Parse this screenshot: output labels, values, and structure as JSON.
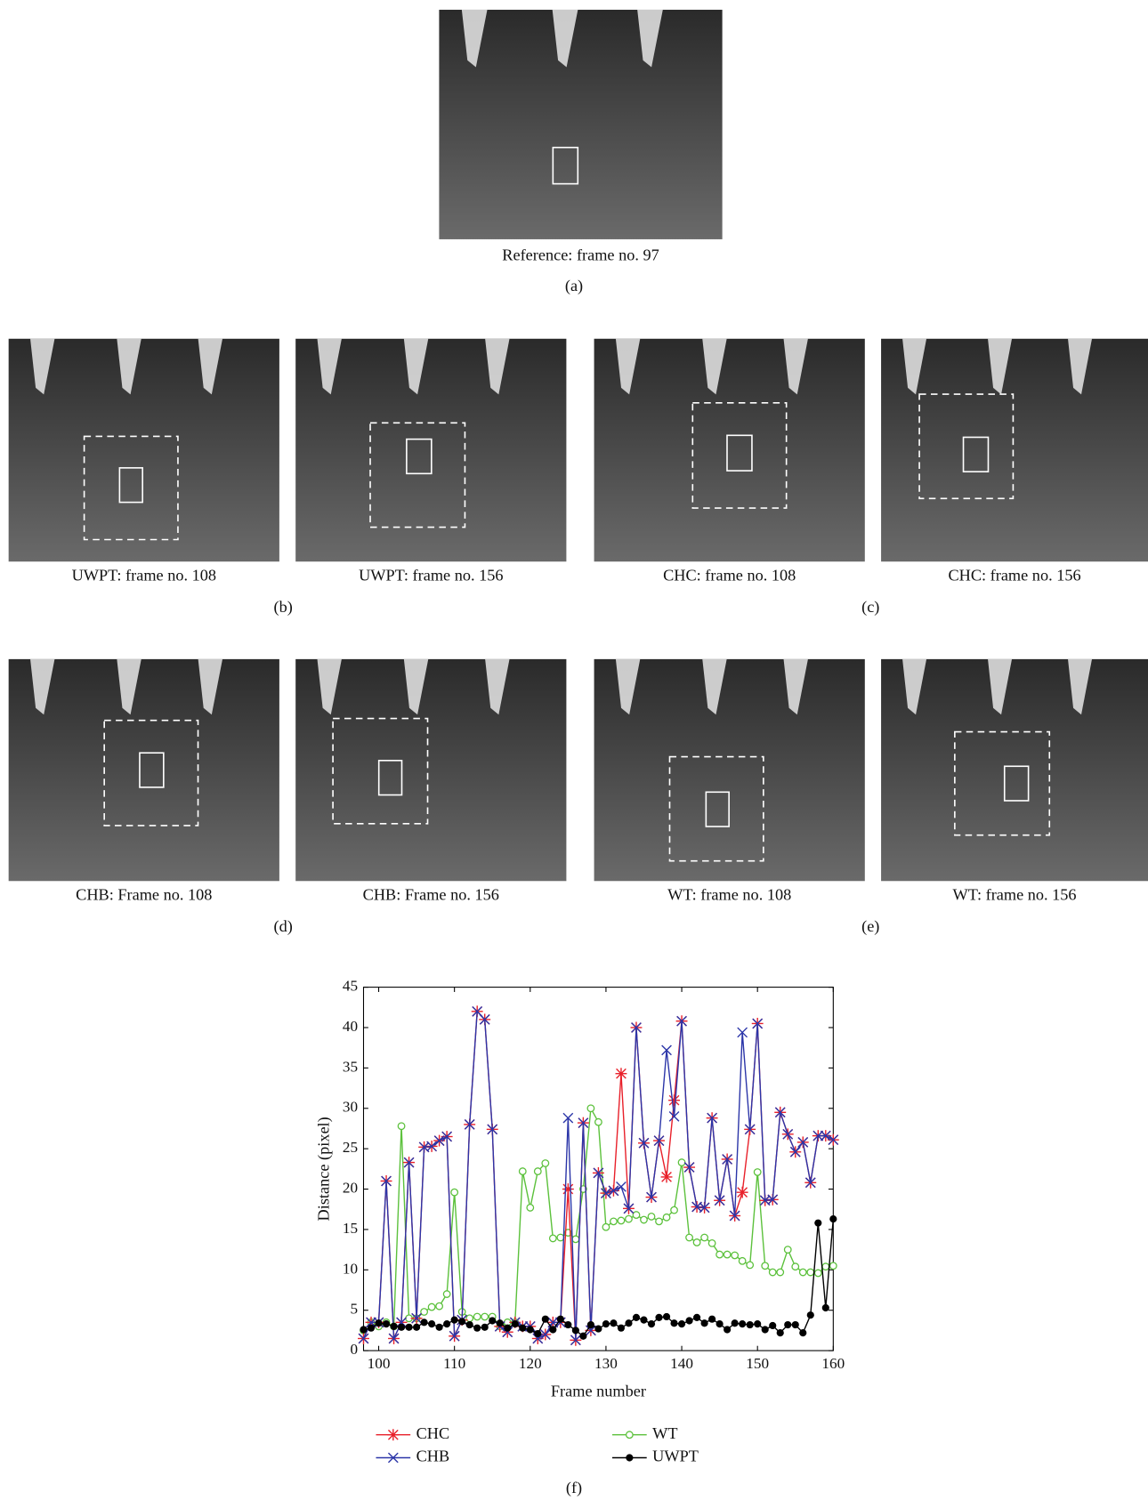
{
  "panels": [
    {
      "label": "(a)",
      "captions": [
        "Reference: frame no. 97"
      ]
    },
    {
      "label": "(b)",
      "captions": [
        "UWPT: frame no. 108",
        "UWPT: frame no. 156"
      ]
    },
    {
      "label": "(c)",
      "captions": [
        "CHC: frame no. 108",
        "CHC: frame no. 156"
      ]
    },
    {
      "label": "(d)",
      "captions": [
        "CHB: Frame no. 108",
        "CHB: Frame no. 156"
      ]
    },
    {
      "label": "(e)",
      "captions": [
        "WT: frame no. 108",
        "WT: frame no. 156"
      ]
    }
  ],
  "chart_data": {
    "type": "line",
    "panel_label": "(f)",
    "xlabel": "Frame number",
    "ylabel": "Distance (pixel)",
    "xlim": [
      98,
      160
    ],
    "xticks": [
      100,
      110,
      120,
      130,
      140,
      150,
      160
    ],
    "ylim": [
      0,
      45
    ],
    "yticks": [
      0,
      5,
      10,
      15,
      20,
      25,
      30,
      35,
      40,
      45
    ],
    "x": [
      98,
      99,
      100,
      101,
      102,
      103,
      104,
      105,
      106,
      107,
      108,
      109,
      110,
      111,
      112,
      113,
      114,
      115,
      116,
      117,
      118,
      119,
      120,
      121,
      122,
      123,
      124,
      125,
      126,
      127,
      128,
      129,
      130,
      131,
      132,
      133,
      134,
      135,
      136,
      137,
      138,
      139,
      140,
      141,
      142,
      143,
      144,
      145,
      146,
      147,
      148,
      149,
      150,
      151,
      152,
      153,
      154,
      155,
      156,
      157,
      158,
      159,
      160
    ],
    "series": [
      {
        "name": "CHC",
        "color": "#e8202a",
        "marker": "star",
        "values": [
          1.5,
          3.5,
          3.5,
          21,
          1.5,
          3.5,
          23.3,
          4,
          25.2,
          25.3,
          26,
          26.5,
          1.8,
          3.8,
          28,
          42,
          41,
          27.4,
          3,
          2.3,
          3.5,
          3,
          3,
          1.5,
          2,
          3.5,
          3.5,
          20,
          1.3,
          28.2,
          2.5,
          22,
          19.5,
          19.8,
          34.3,
          17.6,
          40,
          25.7,
          19,
          26,
          21.5,
          31,
          40.8,
          22.7,
          17.8,
          17.7,
          28.8,
          18.6,
          23.7,
          16.7,
          19.6,
          27.4,
          40.5,
          18.6,
          18.7,
          29.5,
          26.8,
          24.6,
          25.8,
          20.8,
          26.6,
          26.6,
          26.1
        ]
      },
      {
        "name": "CHB",
        "color": "#2b35a8",
        "marker": "cross",
        "values": [
          1.5,
          3.5,
          3.5,
          21,
          1.5,
          3.5,
          23.3,
          4,
          25.2,
          25.3,
          26,
          26.5,
          1.8,
          3.8,
          28,
          42,
          41,
          27.4,
          3,
          2.3,
          3.5,
          3,
          3,
          1.5,
          2,
          3.5,
          3.5,
          28.8,
          1.3,
          28.2,
          2.5,
          22,
          19.5,
          19.8,
          20.3,
          17.6,
          40,
          25.7,
          19,
          26,
          37.2,
          29,
          40.8,
          22.7,
          17.8,
          17.7,
          28.8,
          18.6,
          23.7,
          16.7,
          39.4,
          27.4,
          40.5,
          18.6,
          18.7,
          29.5,
          26.8,
          24.6,
          25.8,
          20.8,
          26.6,
          26.6,
          26.1
        ]
      },
      {
        "name": "WT",
        "color": "#5cc13c",
        "marker": "circle",
        "values": [
          2.5,
          3.5,
          3,
          3.5,
          3,
          27.8,
          4,
          4,
          4.8,
          5.4,
          5.5,
          7,
          19.6,
          4.8,
          4,
          4.2,
          4.2,
          4.2,
          3,
          3.5,
          3.5,
          22.2,
          17.7,
          22.2,
          23.2,
          13.9,
          14,
          14.6,
          13.8,
          20,
          30,
          28.3,
          15.3,
          16,
          16.1,
          16.3,
          16.8,
          16.2,
          16.6,
          16,
          16.5,
          17.4,
          23.3,
          14,
          13.4,
          14,
          13.3,
          11.9,
          11.9,
          11.8,
          11.1,
          10.6,
          22.1,
          10.5,
          9.7,
          9.7,
          12.5,
          10.4,
          9.7,
          9.7,
          9.6,
          10.4,
          10.5
        ]
      },
      {
        "name": "UWPT",
        "color": "#000000",
        "marker": "dot",
        "values": [
          2.6,
          2.8,
          3.4,
          3.3,
          3,
          2.9,
          2.9,
          2.9,
          3.5,
          3.3,
          2.9,
          3.3,
          3.8,
          3.6,
          3.2,
          2.8,
          2.9,
          3.7,
          3.4,
          2.8,
          3.3,
          2.8,
          2.6,
          2.1,
          3.9,
          2.6,
          3.9,
          3.2,
          2.5,
          1.8,
          3.2,
          2.7,
          3.3,
          3.4,
          2.8,
          3.4,
          4.1,
          3.8,
          3.3,
          4.1,
          4.2,
          3.4,
          3.3,
          3.7,
          4.1,
          3.4,
          3.9,
          3.3,
          2.6,
          3.4,
          3.3,
          3.2,
          3.3,
          2.6,
          3.1,
          2.2,
          3.2,
          3.2,
          2.2,
          4.4,
          15.8,
          5.3,
          16.3
        ]
      }
    ]
  }
}
